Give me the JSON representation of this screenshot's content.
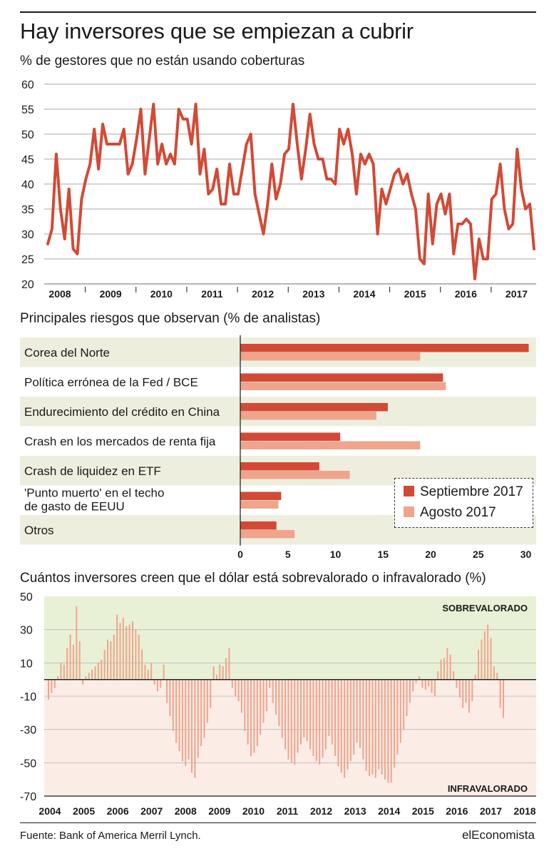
{
  "header": {
    "title": "Hay inversores que se empiezan a cubrir",
    "source": "Fuente: Bank of America Merril Lynch.",
    "brand": "elEconomista"
  },
  "colors": {
    "dark_red": "#d24a36",
    "light_salmon": "#f0a48c",
    "band_light": "#eeeedf",
    "over_bg": "#e8f1d6",
    "under_bg": "#fbece6"
  },
  "chart_data": [
    {
      "type": "line",
      "title": "% de gestores que no están usando coberturas",
      "ylim": [
        20,
        60
      ],
      "yticks": [
        20,
        25,
        30,
        35,
        40,
        45,
        50,
        55,
        60
      ],
      "xlabels": [
        "2008",
        "2009",
        "2010",
        "2011",
        "2012",
        "2013",
        "2014",
        "2015",
        "2016",
        "2017"
      ],
      "grid": true,
      "series": [
        {
          "values": [
            28,
            31,
            46,
            35,
            29,
            39,
            27,
            26,
            37,
            41,
            44,
            51,
            43,
            52,
            48,
            48,
            48,
            48,
            51,
            42,
            44,
            49,
            55,
            42,
            49,
            56,
            44,
            48,
            44,
            46,
            44,
            55,
            53,
            53,
            48,
            56,
            42,
            47,
            38,
            39,
            43,
            36,
            36,
            44,
            38,
            38,
            43,
            48,
            50,
            38,
            34,
            30,
            36,
            44,
            37,
            40,
            46,
            47,
            56,
            48,
            41,
            47,
            54,
            48,
            45,
            45,
            41,
            41,
            40,
            51,
            48,
            51,
            46,
            38,
            46,
            44,
            46,
            44,
            30,
            39,
            36,
            39,
            42,
            43,
            40,
            42,
            38,
            35,
            25,
            24,
            38,
            28,
            36,
            38,
            34,
            38,
            26,
            32,
            32,
            33,
            32,
            21,
            29,
            25,
            25,
            37,
            38,
            44,
            35,
            31,
            32,
            47,
            39,
            35,
            36,
            27
          ]
        }
      ]
    },
    {
      "type": "bar",
      "title": "Principales riesgos que observan (% de analistas)",
      "orientation": "horizontal",
      "categories": [
        "Corea del Norte",
        "Política errónea de la Fed / BCE",
        "Endurecimiento del crédito en China",
        "Crash en los mercados de renta fija",
        "Crash de liquidez en ETF",
        "'Punto muerto' en el techo|de gasto de EEUU",
        "Otros"
      ],
      "xlim": [
        0,
        31
      ],
      "xticks": [
        0,
        5,
        10,
        15,
        20,
        25,
        30
      ],
      "legend_position": "bottom-right",
      "series": [
        {
          "name": "Septiembre 2017",
          "values": [
            30.3,
            21.3,
            15.5,
            10.5,
            8.3,
            4.3,
            3.8
          ]
        },
        {
          "name": "Agosto 2017",
          "values": [
            18.9,
            21.6,
            14.3,
            18.9,
            11.5,
            4.0,
            5.7
          ]
        }
      ]
    },
    {
      "type": "bar",
      "title": "Cuántos inversores creen que el dólar está sobrevalorado o infravalorado (%)",
      "ylim": [
        -70,
        50
      ],
      "yticks": [
        50,
        30,
        10,
        -10,
        -30,
        -50,
        -70
      ],
      "yticklabels": [
        "50",
        "30",
        "10",
        "-10",
        "-30",
        "-50",
        "-70"
      ],
      "xlabels": [
        "2004",
        "2005",
        "2006",
        "2007",
        "2008",
        "2009",
        "2010",
        "2011",
        "2012",
        "2013",
        "2014",
        "2015",
        "2016",
        "2017",
        "2018"
      ],
      "annotations": [
        "SOBREVALORADO",
        "INFRAVALORADO"
      ],
      "values": [
        -12,
        -8,
        -5,
        2,
        10,
        9,
        19,
        27,
        21,
        44,
        23,
        -3,
        2,
        4,
        6,
        8,
        10,
        12,
        18,
        24,
        23,
        27,
        39,
        34,
        37,
        32,
        33,
        35,
        30,
        27,
        18,
        9,
        6,
        10,
        -3,
        -7,
        -5,
        9,
        -14,
        -22,
        -31,
        -38,
        -43,
        -49,
        -52,
        -48,
        -56,
        -59,
        -47,
        -40,
        -35,
        -26,
        -17,
        8,
        3,
        9,
        8,
        13,
        19,
        -5,
        -10,
        -13,
        -20,
        -31,
        -39,
        -46,
        -44,
        -40,
        -33,
        -26,
        -19,
        -5,
        -14,
        -21,
        -28,
        -35,
        -42,
        -48,
        -50,
        -51,
        -44,
        -39,
        -35,
        -37,
        -42,
        -46,
        -49,
        -51,
        -47,
        -42,
        -34,
        -39,
        -46,
        -52,
        -56,
        -59,
        -54,
        -49,
        -45,
        -38,
        -41,
        -48,
        -55,
        -58,
        -57,
        -59,
        -54,
        -57,
        -60,
        -62,
        -62,
        -53,
        -45,
        -38,
        -30,
        -22,
        -14,
        -7,
        -2,
        2,
        -5,
        -6,
        -4,
        -8,
        -10,
        5,
        12,
        13,
        19,
        15,
        5,
        -5,
        -11,
        -17,
        -14,
        -20,
        -13,
        3,
        18,
        24,
        29,
        33,
        25,
        8,
        4,
        -17,
        -23
      ]
    }
  ]
}
